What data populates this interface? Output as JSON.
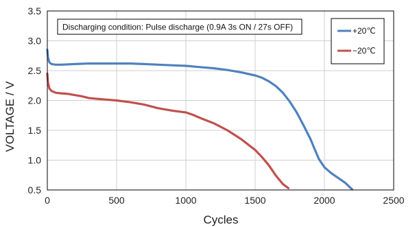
{
  "chart_data": {
    "type": "line",
    "xlabel": "Cycles",
    "ylabel": "VOLTAGE / V",
    "xlim": [
      0,
      2500
    ],
    "ylim": [
      0.5,
      3.5
    ],
    "xticks": [
      0,
      500,
      1000,
      1500,
      2000,
      2500
    ],
    "yticks": [
      0.5,
      1.0,
      1.5,
      2.0,
      2.5,
      3.0,
      3.5
    ],
    "ytick_labels": [
      "0.5",
      "1.0",
      "1.5",
      "2.0",
      "2.5",
      "3.0",
      "3.5"
    ],
    "grid": "both",
    "annotation": "Discharging condition: Pulse discharge (0.9A 3s ON / 27s OFF)",
    "legend_position": "top-right",
    "series": [
      {
        "name": "+20℃",
        "color": "#4F81BD",
        "points": [
          [
            0,
            2.85
          ],
          [
            5,
            2.72
          ],
          [
            15,
            2.64
          ],
          [
            30,
            2.61
          ],
          [
            60,
            2.6
          ],
          [
            100,
            2.6
          ],
          [
            200,
            2.61
          ],
          [
            300,
            2.62
          ],
          [
            400,
            2.62
          ],
          [
            500,
            2.62
          ],
          [
            600,
            2.62
          ],
          [
            700,
            2.61
          ],
          [
            800,
            2.6
          ],
          [
            900,
            2.59
          ],
          [
            1000,
            2.58
          ],
          [
            1100,
            2.56
          ],
          [
            1200,
            2.54
          ],
          [
            1300,
            2.51
          ],
          [
            1400,
            2.47
          ],
          [
            1500,
            2.42
          ],
          [
            1550,
            2.38
          ],
          [
            1600,
            2.32
          ],
          [
            1650,
            2.24
          ],
          [
            1700,
            2.13
          ],
          [
            1750,
            1.98
          ],
          [
            1800,
            1.8
          ],
          [
            1850,
            1.58
          ],
          [
            1900,
            1.35
          ],
          [
            1930,
            1.18
          ],
          [
            1960,
            1.02
          ],
          [
            2000,
            0.88
          ],
          [
            2050,
            0.78
          ],
          [
            2100,
            0.7
          ],
          [
            2150,
            0.62
          ],
          [
            2200,
            0.51
          ]
        ]
      },
      {
        "name": "−20℃",
        "color": "#C0504D",
        "points": [
          [
            0,
            2.45
          ],
          [
            5,
            2.3
          ],
          [
            15,
            2.2
          ],
          [
            30,
            2.16
          ],
          [
            60,
            2.13
          ],
          [
            100,
            2.12
          ],
          [
            150,
            2.11
          ],
          [
            200,
            2.09
          ],
          [
            250,
            2.07
          ],
          [
            300,
            2.04
          ],
          [
            400,
            2.02
          ],
          [
            500,
            2.0
          ],
          [
            600,
            1.97
          ],
          [
            700,
            1.93
          ],
          [
            800,
            1.87
          ],
          [
            900,
            1.83
          ],
          [
            1000,
            1.8
          ],
          [
            1050,
            1.76
          ],
          [
            1100,
            1.71
          ],
          [
            1200,
            1.62
          ],
          [
            1300,
            1.5
          ],
          [
            1400,
            1.35
          ],
          [
            1500,
            1.17
          ],
          [
            1550,
            1.05
          ],
          [
            1600,
            0.91
          ],
          [
            1650,
            0.74
          ],
          [
            1700,
            0.6
          ],
          [
            1740,
            0.53
          ]
        ]
      }
    ]
  }
}
